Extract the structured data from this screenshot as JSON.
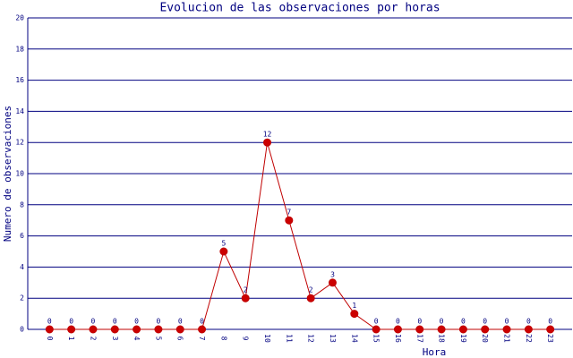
{
  "chart_data": {
    "type": "line",
    "title": "Evolucion de las observaciones por horas",
    "x_label": "Hora",
    "y_label": "Numero de observaciones",
    "categories": [
      "0",
      "1",
      "2",
      "3",
      "4",
      "5",
      "6",
      "7",
      "8",
      "9",
      "10",
      "11",
      "12",
      "13",
      "14",
      "15",
      "16",
      "17",
      "18",
      "19",
      "20",
      "21",
      "22",
      "23"
    ],
    "series": [
      {
        "name": "Observaciones",
        "color": "#c00000",
        "marker_color": "#cc0000",
        "values": [
          0,
          0,
          0,
          0,
          0,
          0,
          0,
          0,
          5,
          2,
          12,
          7,
          2,
          3,
          1,
          0,
          0,
          0,
          0,
          0,
          0,
          0,
          0,
          0
        ]
      }
    ],
    "ylim": [
      0,
      20
    ],
    "yticks": [
      0,
      2,
      4,
      6,
      8,
      10,
      12,
      14,
      16,
      18,
      20
    ],
    "grid": true,
    "grid_color": "#000080",
    "data_labels": true
  }
}
